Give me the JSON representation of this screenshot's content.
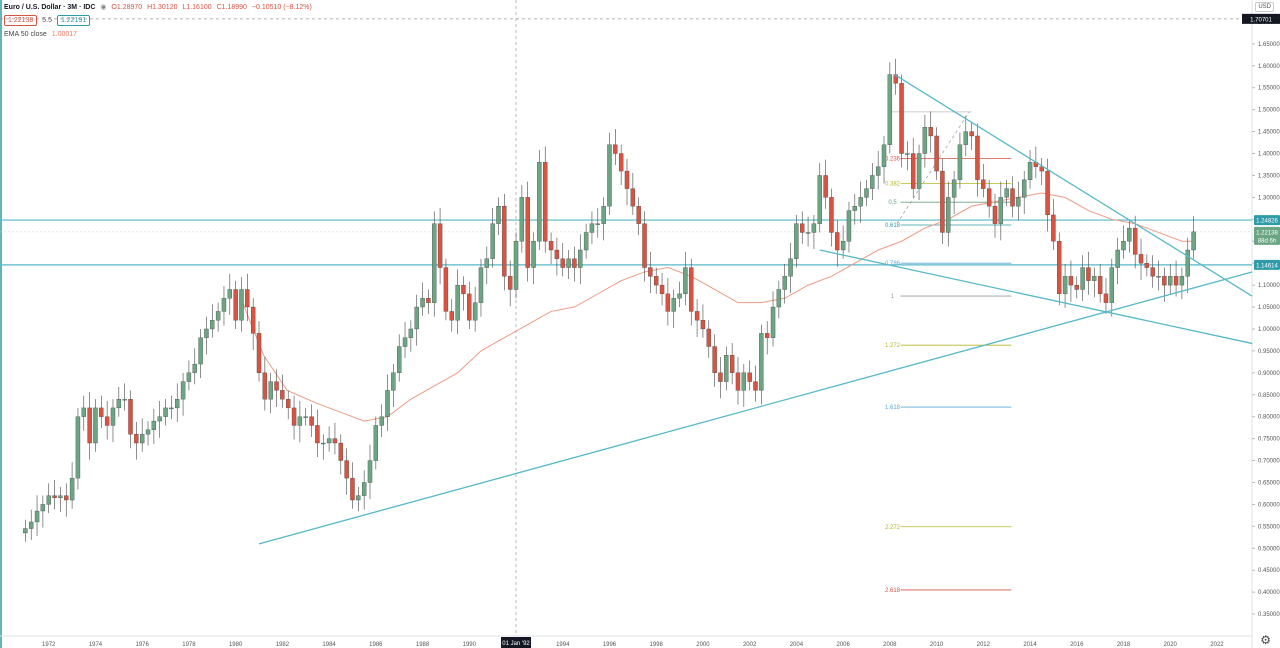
{
  "header": {
    "symbol": "Euro / U.S. Dollar · 3M · IDC",
    "open": "O1.28970",
    "high": "H1.30120",
    "low": "L1.16100",
    "close": "C1.18990",
    "change": "−0.10510 (−8.12%)",
    "bid": "1.22138",
    "spread": "5.5",
    "ask": "1.22191",
    "ema_label": "EMA 50 close",
    "ema_value": "1.00017"
  },
  "currency": "USD",
  "colors": {
    "up": "#6ba583",
    "down": "#d75442",
    "ema": "#ef9a84",
    "trend": "#56b8c8",
    "price_blue": "#2e9ba8",
    "fib_100": "#999999",
    "fib_1272": "#b6b826",
    "fib_1618": "#5aa9d6",
    "fib_2272": "#b6b826",
    "fib_2618": "#d75442"
  },
  "chart_data": {
    "type": "candlestick",
    "period": "3M",
    "y_axis": {
      "min": 0.3,
      "max": 1.75,
      "step": 0.05,
      "decimals": 5
    },
    "x_ticks": [
      "1972",
      "1974",
      "1976",
      "1978",
      "1980",
      "1982",
      "1984",
      "1986",
      "1988",
      "1990",
      "1992",
      "1994",
      "1996",
      "1998",
      "2000",
      "2002",
      "2004",
      "2006",
      "2008",
      "2010",
      "2012",
      "2014",
      "2016",
      "2018",
      "2020",
      "2022"
    ],
    "x_range": [
      1970.0,
      2023.5
    ],
    "crosshair_label": "01 Jan '92",
    "crosshair_x": 1992.0,
    "crosshair_price_label": "1.70701",
    "crosshair_price": 1.70701,
    "price_labels": [
      {
        "text": "1.24826",
        "value": 1.24826,
        "color": "#2e9ba8"
      },
      {
        "text": "1.22138",
        "value": 1.22138,
        "color": "#6ba583"
      },
      {
        "text": "88d 6h",
        "value": 1.203,
        "color": "#6ba583"
      },
      {
        "text": "1.14614",
        "value": 1.14614,
        "color": "#2e9ba8"
      }
    ],
    "horizontal_levels": [
      1.24826,
      1.14614
    ],
    "ema50": [
      [
        1980.3,
        1.06
      ],
      [
        1981.2,
        0.94
      ],
      [
        1982.2,
        0.86
      ],
      [
        1983.5,
        0.83
      ],
      [
        1984.5,
        0.81
      ],
      [
        1985.5,
        0.79
      ],
      [
        1986.5,
        0.8
      ],
      [
        1987.5,
        0.84
      ],
      [
        1988.5,
        0.87
      ],
      [
        1989.5,
        0.9
      ],
      [
        1990.5,
        0.95
      ],
      [
        1991.5,
        0.98
      ],
      [
        1992.5,
        1.01
      ],
      [
        1993.5,
        1.04
      ],
      [
        1994.5,
        1.05
      ],
      [
        1995.5,
        1.08
      ],
      [
        1996.5,
        1.11
      ],
      [
        1997.5,
        1.13
      ],
      [
        1998.5,
        1.14
      ],
      [
        1999.5,
        1.12
      ],
      [
        2000.5,
        1.09
      ],
      [
        2001.5,
        1.06
      ],
      [
        2002.5,
        1.06
      ],
      [
        2003.5,
        1.07
      ],
      [
        2004.5,
        1.1
      ],
      [
        2005.5,
        1.12
      ],
      [
        2006.5,
        1.15
      ],
      [
        2007.5,
        1.18
      ],
      [
        2008.5,
        1.2
      ],
      [
        2009.5,
        1.23
      ],
      [
        2010.5,
        1.25
      ],
      [
        2011.5,
        1.28
      ],
      [
        2012.5,
        1.29
      ],
      [
        2013.5,
        1.3
      ],
      [
        2014.5,
        1.31
      ],
      [
        2015.5,
        1.3
      ],
      [
        2016.5,
        1.27
      ],
      [
        2017.5,
        1.25
      ],
      [
        2018.5,
        1.24
      ],
      [
        2019.5,
        1.22
      ],
      [
        2020.5,
        1.2
      ],
      [
        2020.9,
        1.2
      ]
    ],
    "trendlines": [
      [
        [
          1981.0,
          0.51
        ],
        [
          2023.5,
          1.13
        ]
      ],
      [
        [
          2008.2,
          1.58
        ],
        [
          2023.5,
          1.075
        ]
      ],
      [
        [
          2005.0,
          1.18
        ],
        [
          2023.5,
          0.967
        ]
      ]
    ],
    "fib_levels": [
      {
        "label": "0.236",
        "value": 1.389,
        "color": "#d75442"
      },
      {
        "label": "0.382",
        "value": 1.332,
        "color": "#b6b826"
      },
      {
        "label": "0.5",
        "value": 1.289,
        "color": "#6ba583"
      },
      {
        "label": "0.618",
        "value": 1.237,
        "color": "#2e9ba8"
      },
      {
        "label": "0.786",
        "value": 1.15,
        "color": "#5aa9d6"
      },
      {
        "label": "1",
        "value": 1.075,
        "color": "#999999"
      },
      {
        "label": "1.272",
        "value": 0.963,
        "color": "#b6b826"
      },
      {
        "label": "1.618",
        "value": 0.822,
        "color": "#5aa9d6"
      },
      {
        "label": "2.272",
        "value": 0.549,
        "color": "#b6b826"
      },
      {
        "label": "2.618",
        "value": 0.405,
        "color": "#d75442"
      }
    ],
    "fib_top": 1.495,
    "fib_x": [
      2007.6,
      2011.5
    ],
    "closes": [
      [
        1971.0,
        0.545
      ],
      [
        1971.25,
        0.56
      ],
      [
        1971.5,
        0.585
      ],
      [
        1971.75,
        0.6
      ],
      [
        1972.0,
        0.62
      ],
      [
        1972.25,
        0.615
      ],
      [
        1972.5,
        0.62
      ],
      [
        1972.75,
        0.61
      ],
      [
        1973.0,
        0.66
      ],
      [
        1973.25,
        0.8
      ],
      [
        1973.5,
        0.82
      ],
      [
        1973.75,
        0.74
      ],
      [
        1974.0,
        0.82
      ],
      [
        1974.25,
        0.8
      ],
      [
        1974.5,
        0.78
      ],
      [
        1974.75,
        0.82
      ],
      [
        1975.0,
        0.84
      ],
      [
        1975.25,
        0.84
      ],
      [
        1975.5,
        0.76
      ],
      [
        1975.75,
        0.74
      ],
      [
        1976.0,
        0.76
      ],
      [
        1976.25,
        0.77
      ],
      [
        1976.5,
        0.79
      ],
      [
        1976.75,
        0.8
      ],
      [
        1977.0,
        0.82
      ],
      [
        1977.25,
        0.82
      ],
      [
        1977.5,
        0.84
      ],
      [
        1977.75,
        0.88
      ],
      [
        1978.0,
        0.9
      ],
      [
        1978.25,
        0.92
      ],
      [
        1978.5,
        0.98
      ],
      [
        1978.75,
        1.0
      ],
      [
        1979.0,
        1.02
      ],
      [
        1979.25,
        1.04
      ],
      [
        1979.5,
        1.07
      ],
      [
        1979.75,
        1.09
      ],
      [
        1980.0,
        1.02
      ],
      [
        1980.25,
        1.09
      ],
      [
        1980.5,
        1.05
      ],
      [
        1980.75,
        0.99
      ],
      [
        1981.0,
        0.9
      ],
      [
        1981.25,
        0.84
      ],
      [
        1981.5,
        0.88
      ],
      [
        1981.75,
        0.86
      ],
      [
        1982.0,
        0.84
      ],
      [
        1982.25,
        0.82
      ],
      [
        1982.5,
        0.78
      ],
      [
        1982.75,
        0.8
      ],
      [
        1983.0,
        0.8
      ],
      [
        1983.25,
        0.78
      ],
      [
        1983.5,
        0.74
      ],
      [
        1983.75,
        0.74
      ],
      [
        1984.0,
        0.75
      ],
      [
        1984.25,
        0.74
      ],
      [
        1984.5,
        0.7
      ],
      [
        1984.75,
        0.66
      ],
      [
        1985.0,
        0.61
      ],
      [
        1985.25,
        0.62
      ],
      [
        1985.5,
        0.65
      ],
      [
        1985.75,
        0.7
      ],
      [
        1986.0,
        0.78
      ],
      [
        1986.25,
        0.8
      ],
      [
        1986.5,
        0.86
      ],
      [
        1986.75,
        0.9
      ],
      [
        1987.0,
        0.96
      ],
      [
        1987.25,
        0.98
      ],
      [
        1987.5,
        1.0
      ],
      [
        1987.75,
        1.05
      ],
      [
        1988.0,
        1.07
      ],
      [
        1988.25,
        1.06
      ],
      [
        1988.5,
        1.24
      ],
      [
        1988.75,
        1.14
      ],
      [
        1989.0,
        1.04
      ],
      [
        1989.25,
        1.02
      ],
      [
        1989.5,
        1.1
      ],
      [
        1989.75,
        1.08
      ],
      [
        1990.0,
        1.02
      ],
      [
        1990.25,
        1.06
      ],
      [
        1990.5,
        1.14
      ],
      [
        1990.75,
        1.16
      ],
      [
        1991.0,
        1.24
      ],
      [
        1991.25,
        1.28
      ],
      [
        1991.5,
        1.12
      ],
      [
        1991.75,
        1.09
      ],
      [
        1992.0,
        1.2
      ],
      [
        1992.25,
        1.3
      ],
      [
        1992.5,
        1.14
      ],
      [
        1992.75,
        1.2
      ],
      [
        1993.0,
        1.38
      ],
      [
        1993.25,
        1.2
      ],
      [
        1993.5,
        1.18
      ],
      [
        1993.75,
        1.16
      ],
      [
        1994.0,
        1.14
      ],
      [
        1994.25,
        1.16
      ],
      [
        1994.5,
        1.14
      ],
      [
        1994.75,
        1.18
      ],
      [
        1995.0,
        1.22
      ],
      [
        1995.25,
        1.24
      ],
      [
        1995.5,
        1.24
      ],
      [
        1995.75,
        1.28
      ],
      [
        1996.0,
        1.42
      ],
      [
        1996.25,
        1.4
      ],
      [
        1996.5,
        1.36
      ],
      [
        1996.75,
        1.32
      ],
      [
        1997.0,
        1.28
      ],
      [
        1997.25,
        1.24
      ],
      [
        1997.5,
        1.14
      ],
      [
        1997.75,
        1.12
      ],
      [
        1998.0,
        1.1
      ],
      [
        1998.25,
        1.08
      ],
      [
        1998.5,
        1.04
      ],
      [
        1998.75,
        1.07
      ],
      [
        1999.0,
        1.08
      ],
      [
        1999.25,
        1.14
      ],
      [
        1999.5,
        1.04
      ],
      [
        1999.75,
        1.02
      ],
      [
        2000.0,
        1.0
      ],
      [
        2000.25,
        0.96
      ],
      [
        2000.5,
        0.9
      ],
      [
        2000.75,
        0.88
      ],
      [
        2001.0,
        0.94
      ],
      [
        2001.25,
        0.9
      ],
      [
        2001.5,
        0.86
      ],
      [
        2001.75,
        0.9
      ],
      [
        2002.0,
        0.88
      ],
      [
        2002.25,
        0.86
      ],
      [
        2002.5,
        0.99
      ],
      [
        2002.75,
        0.98
      ],
      [
        2003.0,
        1.05
      ],
      [
        2003.25,
        1.09
      ],
      [
        2003.5,
        1.12
      ],
      [
        2003.75,
        1.16
      ],
      [
        2004.0,
        1.24
      ],
      [
        2004.25,
        1.22
      ],
      [
        2004.5,
        1.22
      ],
      [
        2004.75,
        1.24
      ],
      [
        2005.0,
        1.35
      ],
      [
        2005.25,
        1.3
      ],
      [
        2005.5,
        1.22
      ],
      [
        2005.75,
        1.18
      ],
      [
        2006.0,
        1.2
      ],
      [
        2006.25,
        1.27
      ],
      [
        2006.5,
        1.28
      ],
      [
        2006.75,
        1.3
      ],
      [
        2007.0,
        1.32
      ],
      [
        2007.25,
        1.35
      ],
      [
        2007.5,
        1.37
      ],
      [
        2007.75,
        1.42
      ],
      [
        2008.0,
        1.58
      ],
      [
        2008.25,
        1.56
      ],
      [
        2008.5,
        1.4
      ],
      [
        2008.75,
        1.4
      ],
      [
        2009.0,
        1.32
      ],
      [
        2009.25,
        1.4
      ],
      [
        2009.5,
        1.46
      ],
      [
        2009.75,
        1.44
      ],
      [
        2010.0,
        1.36
      ],
      [
        2010.25,
        1.22
      ],
      [
        2010.5,
        1.3
      ],
      [
        2010.75,
        1.34
      ],
      [
        2011.0,
        1.42
      ],
      [
        2011.25,
        1.45
      ],
      [
        2011.5,
        1.44
      ],
      [
        2011.75,
        1.34
      ],
      [
        2012.0,
        1.32
      ],
      [
        2012.25,
        1.28
      ],
      [
        2012.5,
        1.24
      ],
      [
        2012.75,
        1.3
      ],
      [
        2013.0,
        1.32
      ],
      [
        2013.25,
        1.28
      ],
      [
        2013.5,
        1.3
      ],
      [
        2013.75,
        1.34
      ],
      [
        2014.0,
        1.38
      ],
      [
        2014.25,
        1.37
      ],
      [
        2014.5,
        1.36
      ],
      [
        2014.75,
        1.26
      ],
      [
        2015.0,
        1.2
      ],
      [
        2015.25,
        1.08
      ],
      [
        2015.5,
        1.12
      ],
      [
        2015.75,
        1.1
      ],
      [
        2016.0,
        1.09
      ],
      [
        2016.25,
        1.14
      ],
      [
        2016.5,
        1.11
      ],
      [
        2016.75,
        1.12
      ],
      [
        2017.0,
        1.08
      ],
      [
        2017.25,
        1.06
      ],
      [
        2017.5,
        1.14
      ],
      [
        2017.75,
        1.18
      ],
      [
        2018.0,
        1.2
      ],
      [
        2018.25,
        1.23
      ],
      [
        2018.5,
        1.17
      ],
      [
        2018.75,
        1.15
      ],
      [
        2019.0,
        1.14
      ],
      [
        2019.25,
        1.12
      ],
      [
        2019.5,
        1.12
      ],
      [
        2019.75,
        1.1
      ],
      [
        2020.0,
        1.12
      ],
      [
        2020.25,
        1.1
      ],
      [
        2020.5,
        1.12
      ],
      [
        2020.75,
        1.18
      ],
      [
        2021.0,
        1.22138
      ]
    ]
  }
}
